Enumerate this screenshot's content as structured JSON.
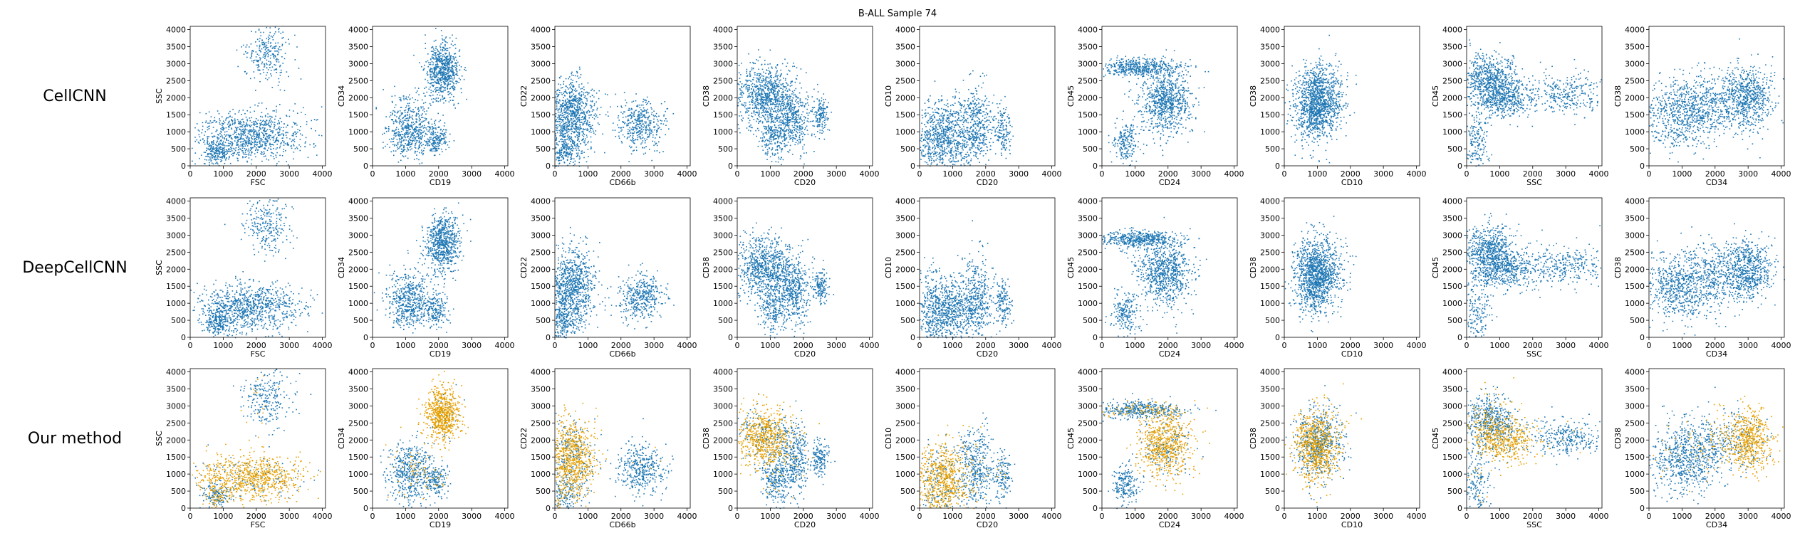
{
  "title": "B-ALL Sample 74",
  "colors": {
    "base": "#1f77b4",
    "highlight": "#e69f00"
  },
  "rows": [
    {
      "label": "CellCNN",
      "highlight": false
    },
    {
      "label": "DeepCellCNN",
      "highlight": false
    },
    {
      "label": "Our method",
      "highlight": true
    }
  ],
  "chart_data": {
    "type": "scatter",
    "xlim": [
      0,
      4096
    ],
    "ylim": [
      0,
      4096
    ],
    "ticks": [
      0,
      500,
      1000,
      1500,
      2000,
      2500,
      3000,
      3500,
      4000
    ],
    "xticks": [
      0,
      1000,
      2000,
      3000,
      4000
    ],
    "yticks": [
      0,
      500,
      1000,
      1500,
      2000,
      2500,
      3000,
      3500,
      4000
    ],
    "panels": [
      {
        "xlabel": "FSC",
        "ylabel": "SSC"
      },
      {
        "xlabel": "CD19",
        "ylabel": "CD34"
      },
      {
        "xlabel": "CD66b",
        "ylabel": "CD22"
      },
      {
        "xlabel": "CD20",
        "ylabel": "CD38"
      },
      {
        "xlabel": "CD20",
        "ylabel": "CD10"
      },
      {
        "xlabel": "CD24",
        "ylabel": "CD45"
      },
      {
        "xlabel": "CD10",
        "ylabel": "CD38"
      },
      {
        "xlabel": "SSC",
        "ylabel": "CD45"
      },
      {
        "xlabel": "CD34",
        "ylabel": "CD38"
      }
    ],
    "clusters": [
      [
        {
          "cx": 1800,
          "cy": 900,
          "sx": 800,
          "sy": 350,
          "n": 900,
          "hl": 0.85
        },
        {
          "cx": 2300,
          "cy": 3300,
          "sx": 350,
          "sy": 450,
          "n": 260,
          "hl": 0.05
        },
        {
          "cx": 800,
          "cy": 400,
          "sx": 200,
          "sy": 200,
          "n": 200,
          "hl": 0.3
        }
      ],
      [
        {
          "cx": 2100,
          "cy": 2800,
          "sx": 250,
          "sy": 400,
          "n": 700,
          "hl": 0.95
        },
        {
          "cx": 1100,
          "cy": 1100,
          "sx": 350,
          "sy": 450,
          "n": 550,
          "hl": 0.1
        },
        {
          "cx": 1900,
          "cy": 800,
          "sx": 180,
          "sy": 220,
          "n": 180,
          "hl": 0.1
        }
      ],
      [
        {
          "cx": 500,
          "cy": 1500,
          "sx": 350,
          "sy": 550,
          "n": 900,
          "hl": 0.75
        },
        {
          "cx": 2600,
          "cy": 1200,
          "sx": 350,
          "sy": 350,
          "n": 400,
          "hl": 0.02
        },
        {
          "cx": 200,
          "cy": 400,
          "sx": 300,
          "sy": 300,
          "n": 250,
          "hl": 0.2
        }
      ],
      [
        {
          "cx": 800,
          "cy": 2100,
          "sx": 450,
          "sy": 450,
          "n": 800,
          "hl": 0.75
        },
        {
          "cx": 1700,
          "cy": 1400,
          "sx": 250,
          "sy": 500,
          "n": 400,
          "hl": 0.05
        },
        {
          "cx": 2500,
          "cy": 1500,
          "sx": 130,
          "sy": 250,
          "n": 150,
          "hl": 0.0
        },
        {
          "cx": 1100,
          "cy": 900,
          "sx": 200,
          "sy": 400,
          "n": 250,
          "hl": 0.1
        }
      ],
      [
        {
          "cx": 700,
          "cy": 800,
          "sx": 450,
          "sy": 550,
          "n": 900,
          "hl": 0.75
        },
        {
          "cx": 1700,
          "cy": 1200,
          "sx": 250,
          "sy": 600,
          "n": 400,
          "hl": 0.05
        },
        {
          "cx": 2500,
          "cy": 1000,
          "sx": 130,
          "sy": 350,
          "n": 150,
          "hl": 0.05
        }
      ],
      [
        {
          "cx": 1100,
          "cy": 2900,
          "sx": 650,
          "sy": 130,
          "n": 500,
          "hl": 0.2
        },
        {
          "cx": 1900,
          "cy": 1900,
          "sx": 400,
          "sy": 450,
          "n": 800,
          "hl": 0.8
        },
        {
          "cx": 700,
          "cy": 700,
          "sx": 200,
          "sy": 300,
          "n": 200,
          "hl": 0.0
        }
      ],
      [
        {
          "cx": 900,
          "cy": 1800,
          "sx": 300,
          "sy": 550,
          "n": 1000,
          "hl": 0.6
        },
        {
          "cx": 1300,
          "cy": 2000,
          "sx": 300,
          "sy": 500,
          "n": 300,
          "hl": 0.4
        }
      ],
      [
        {
          "cx": 700,
          "cy": 2600,
          "sx": 400,
          "sy": 350,
          "n": 600,
          "hl": 0.25
        },
        {
          "cx": 1100,
          "cy": 2000,
          "sx": 500,
          "sy": 300,
          "n": 500,
          "hl": 0.85
        },
        {
          "cx": 3000,
          "cy": 2100,
          "sx": 600,
          "sy": 300,
          "n": 300,
          "hl": 0.02
        },
        {
          "cx": 300,
          "cy": 800,
          "sx": 200,
          "sy": 500,
          "n": 180,
          "hl": 0.1
        }
      ],
      [
        {
          "cx": 1000,
          "cy": 1500,
          "sx": 600,
          "sy": 500,
          "n": 700,
          "hl": 0.02
        },
        {
          "cx": 3000,
          "cy": 2000,
          "sx": 350,
          "sy": 450,
          "n": 600,
          "hl": 0.9
        },
        {
          "cx": 2000,
          "cy": 1900,
          "sx": 600,
          "sy": 450,
          "n": 350,
          "hl": 0.3
        }
      ]
    ]
  }
}
